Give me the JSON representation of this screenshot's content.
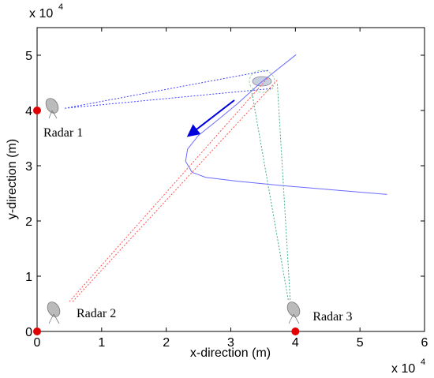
{
  "chart_data": {
    "type": "line",
    "x_label": "x-direction (m)",
    "y_label": "y-direction (m)",
    "x_multiplier": "x 10",
    "x_multiplier_exp": "4",
    "y_multiplier": "x 10",
    "y_multiplier_exp": "4",
    "xlim": [
      0,
      6
    ],
    "ylim": [
      0,
      5.5
    ],
    "xticks": [
      0,
      1,
      2,
      3,
      4,
      5,
      6
    ],
    "yticks": [
      0,
      1,
      2,
      3,
      4,
      5
    ],
    "grid": false,
    "series": [
      {
        "style": "solid",
        "color": "#6b6bff",
        "x": [
          5.42,
          4.6,
          3.8,
          3.1,
          2.61,
          2.4,
          2.3,
          2.33,
          2.5,
          2.8,
          3.1,
          3.46,
          4.01
        ],
        "values": [
          2.48,
          2.56,
          2.64,
          2.72,
          2.79,
          2.88,
          3.08,
          3.3,
          3.55,
          3.83,
          4.12,
          4.5,
          5.01
        ]
      },
      {
        "style": "dashed",
        "color": "#4040ff",
        "x": [
          0.43,
          3.59,
          3.59,
          0.43,
          3.65
        ],
        "values": [
          4.04,
          4.73,
          null,
          4.04,
          4.4
        ]
      },
      {
        "style": "dashed",
        "color": "#ff5050",
        "x": [
          0.5,
          3.58,
          3.58,
          0.55,
          3.72
        ],
        "values": [
          0.54,
          4.6,
          null,
          0.54,
          4.55
        ]
      },
      {
        "style": "dashed",
        "color": "#40b080",
        "x": [
          3.89,
          3.32,
          3.32,
          3.92,
          3.72
        ],
        "values": [
          0.57,
          4.37,
          null,
          0.57,
          4.5
        ]
      },
      {
        "style": "marker",
        "color": "#e00000",
        "x": [
          0,
          0,
          4
        ],
        "values": [
          4,
          0,
          0
        ],
        "labels": [
          "Radar 1",
          "Radar 2",
          "Radar 3"
        ]
      }
    ]
  }
}
